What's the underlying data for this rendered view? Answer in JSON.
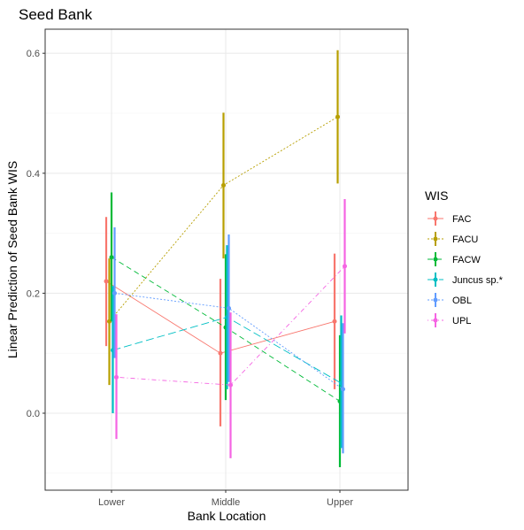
{
  "chart_data": {
    "type": "line",
    "title": "Seed Bank",
    "xlabel": "Bank Location",
    "ylabel": "Linear Prediction of Seed Bank WIS",
    "categories": [
      "Lower",
      "Middle",
      "Upper"
    ],
    "ylim": [
      -0.12,
      0.64
    ],
    "yticks": [
      0.0,
      0.2,
      0.4,
      0.6
    ],
    "ytick_labels": [
      "0.0",
      "0.2",
      "0.4",
      "0.6"
    ],
    "grid": true,
    "legend": {
      "title": "WIS",
      "placement": "right"
    },
    "error_bars": true,
    "series": [
      {
        "name": "FAC",
        "color": "#F8766D",
        "dash": "solid",
        "values": [
          0.22,
          0.1,
          0.153
        ],
        "lower": [
          0.112,
          -0.022,
          0.04
        ],
        "upper": [
          0.327,
          0.224,
          0.266
        ]
      },
      {
        "name": "FACU",
        "color": "#B79F00",
        "dash": "dotted",
        "values": [
          0.153,
          0.38,
          0.494
        ],
        "lower": [
          0.047,
          0.258,
          0.383
        ],
        "upper": [
          0.258,
          0.501,
          0.605
        ]
      },
      {
        "name": "FACW",
        "color": "#00BA38",
        "dash": "dashed",
        "values": [
          0.26,
          0.143,
          0.02
        ],
        "lower": [
          0.153,
          0.022,
          -0.09
        ],
        "upper": [
          0.368,
          0.265,
          0.13
        ]
      },
      {
        "name": "Juncus sp.*",
        "color": "#00BFC4",
        "dash": "longdash",
        "values": [
          0.105,
          0.16,
          0.05
        ],
        "lower": [
          0.0,
          0.04,
          -0.058
        ],
        "upper": [
          0.212,
          0.28,
          0.163
        ]
      },
      {
        "name": "OBL",
        "color": "#619CFF",
        "dash": "dotted",
        "values": [
          0.2,
          0.175,
          0.04
        ],
        "lower": [
          0.092,
          0.052,
          -0.067
        ],
        "upper": [
          0.31,
          0.298,
          0.15
        ]
      },
      {
        "name": "UPL",
        "color": "#F564E3",
        "dash": "dotdash",
        "values": [
          0.06,
          0.047,
          0.245
        ],
        "lower": [
          -0.043,
          -0.075,
          0.133
        ],
        "upper": [
          0.165,
          0.168,
          0.357
        ]
      }
    ]
  }
}
